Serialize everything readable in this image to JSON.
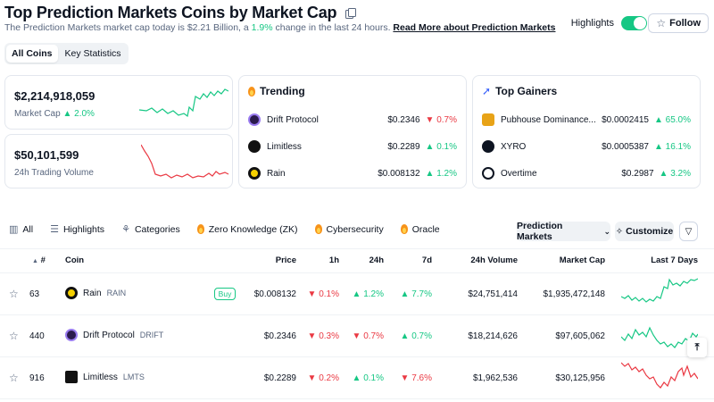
{
  "header": {
    "title": "Top Prediction Markets Coins by Market Cap",
    "subtitle_prefix": "The Prediction Markets market cap today is $2.21 Billion, a ",
    "subtitle_change": "1.9%",
    "subtitle_suffix": " change in the last 24 hours.",
    "read_more": "Read More about Prediction Markets",
    "highlights_label": "Highlights",
    "follow_label": "Follow"
  },
  "tabs": [
    "All Coins",
    "Key Statistics"
  ],
  "stats": {
    "market_cap": {
      "value": "$2,214,918,059",
      "label": "Market Cap",
      "change": "2.0%"
    },
    "volume": {
      "value": "$50,101,599",
      "label": "24h Trading Volume"
    }
  },
  "trending": {
    "title": "Trending",
    "items": [
      {
        "name": "Drift Protocol",
        "price": "$0.2346",
        "change": "0.7%",
        "dir": "down"
      },
      {
        "name": "Limitless",
        "price": "$0.2289",
        "change": "0.1%",
        "dir": "up"
      },
      {
        "name": "Rain",
        "price": "$0.008132",
        "change": "1.2%",
        "dir": "up"
      }
    ]
  },
  "gainers": {
    "title": "Top Gainers",
    "items": [
      {
        "name": "Pubhouse Dominance...",
        "price": "$0.0002415",
        "change": "65.0%",
        "dir": "up"
      },
      {
        "name": "XYRO",
        "price": "$0.0005387",
        "change": "16.1%",
        "dir": "up"
      },
      {
        "name": "Overtime",
        "price": "$0.2987",
        "change": "3.2%",
        "dir": "up"
      }
    ]
  },
  "filters": {
    "items": [
      "All",
      "Highlights",
      "Categories",
      "Zero Knowledge (ZK)",
      "Cybersecurity",
      "Oracle"
    ],
    "category_select": "Prediction Markets",
    "customize": "Customize"
  },
  "table": {
    "headers": {
      "rank": "#",
      "coin": "Coin",
      "price": "Price",
      "h1": "1h",
      "h24": "24h",
      "d7": "7d",
      "volume": "24h Volume",
      "mcap": "Market Cap",
      "last7": "Last 7 Days"
    },
    "buy_label": "Buy",
    "rows": [
      {
        "rank": "63",
        "name": "Rain",
        "symbol": "RAIN",
        "price": "$0.008132",
        "h1": "0.1%",
        "h1_dir": "down",
        "h24": "1.2%",
        "h24_dir": "up",
        "d7": "7.7%",
        "d7_dir": "up",
        "volume": "$24,751,414",
        "mcap": "$1,935,472,148",
        "trend": "up"
      },
      {
        "rank": "440",
        "name": "Drift Protocol",
        "symbol": "DRIFT",
        "price": "$0.2346",
        "h1": "0.3%",
        "h1_dir": "down",
        "h24": "0.7%",
        "h24_dir": "down",
        "d7": "0.7%",
        "d7_dir": "up",
        "volume": "$18,214,626",
        "mcap": "$97,605,062",
        "trend": "up"
      },
      {
        "rank": "916",
        "name": "Limitless",
        "symbol": "LMTS",
        "price": "$0.2289",
        "h1": "0.2%",
        "h1_dir": "down",
        "h24": "0.1%",
        "h24_dir": "up",
        "d7": "7.6%",
        "d7_dir": "down",
        "volume": "$1,962,536",
        "mcap": "$30,125,956",
        "trend": "down"
      }
    ]
  },
  "colors": {
    "up": "#16c784",
    "down": "#ea3943",
    "accent": "#3861fb"
  }
}
